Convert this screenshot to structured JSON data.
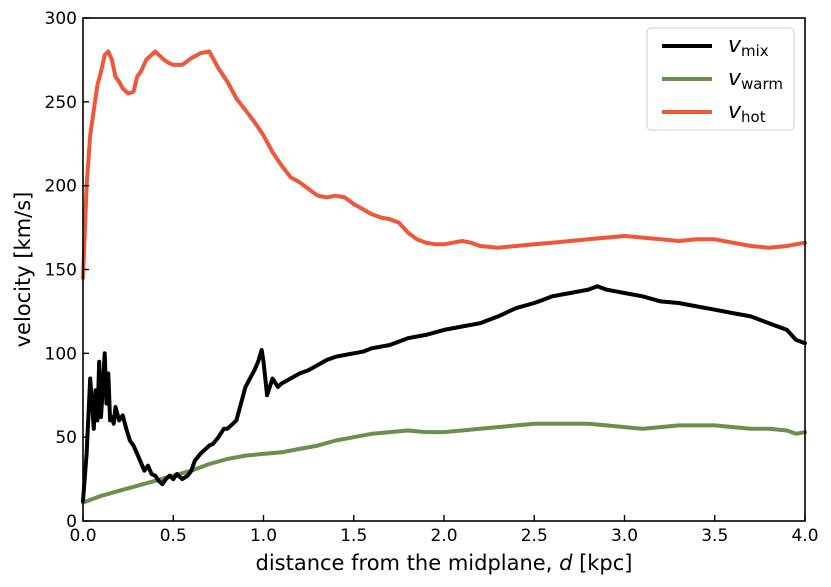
{
  "chart_data": {
    "type": "line",
    "xlabel_prefix": "distance from the midplane, ",
    "xlabel_var": "d",
    "xlabel_suffix": " [kpc]",
    "ylabel": "velocity [km/s]",
    "xlim": [
      0.0,
      4.0
    ],
    "ylim": [
      0,
      300
    ],
    "xticks": [
      "0.0",
      "0.5",
      "1.0",
      "1.5",
      "2.0",
      "2.5",
      "3.0",
      "3.5",
      "4.0"
    ],
    "yticks": [
      "0",
      "50",
      "100",
      "150",
      "200",
      "250",
      "300"
    ],
    "grid": false,
    "legend_position": "top-right",
    "series": [
      {
        "name": "v_mix",
        "legend_symbol": "v",
        "legend_subscript": "mix",
        "color": "#000000",
        "x": [
          0.0,
          0.02,
          0.04,
          0.06,
          0.07,
          0.08,
          0.09,
          0.1,
          0.11,
          0.12,
          0.13,
          0.14,
          0.15,
          0.16,
          0.17,
          0.18,
          0.2,
          0.22,
          0.24,
          0.26,
          0.28,
          0.3,
          0.32,
          0.34,
          0.36,
          0.38,
          0.4,
          0.42,
          0.44,
          0.46,
          0.48,
          0.5,
          0.52,
          0.55,
          0.58,
          0.6,
          0.62,
          0.65,
          0.68,
          0.7,
          0.72,
          0.75,
          0.78,
          0.8,
          0.85,
          0.9,
          0.95,
          0.97,
          0.99,
          1.0,
          1.02,
          1.05,
          1.08,
          1.1,
          1.15,
          1.2,
          1.25,
          1.3,
          1.35,
          1.4,
          1.45,
          1.5,
          1.55,
          1.6,
          1.7,
          1.8,
          1.9,
          2.0,
          2.1,
          2.2,
          2.3,
          2.4,
          2.5,
          2.55,
          2.6,
          2.65,
          2.7,
          2.75,
          2.8,
          2.85,
          2.9,
          2.95,
          3.0,
          3.1,
          3.2,
          3.3,
          3.4,
          3.5,
          3.6,
          3.7,
          3.8,
          3.9,
          3.95,
          4.0
        ],
        "y": [
          12,
          40,
          85,
          55,
          78,
          60,
          95,
          62,
          80,
          100,
          70,
          88,
          60,
          62,
          58,
          68,
          60,
          63,
          55,
          48,
          45,
          40,
          35,
          30,
          33,
          28,
          27,
          24,
          22,
          25,
          27,
          25,
          28,
          25,
          27,
          30,
          36,
          40,
          43,
          45,
          46,
          50,
          55,
          55,
          60,
          80,
          90,
          95,
          102,
          95,
          75,
          85,
          80,
          82,
          85,
          88,
          90,
          93,
          96,
          98,
          99,
          100,
          101,
          103,
          105,
          109,
          111,
          114,
          116,
          118,
          122,
          127,
          130,
          132,
          134,
          135,
          136,
          137,
          138,
          140,
          138,
          137,
          136,
          134,
          131,
          130,
          128,
          126,
          124,
          122,
          118,
          114,
          108,
          106
        ]
      },
      {
        "name": "v_warm",
        "legend_symbol": "v",
        "legend_subscript": "warm",
        "color": "#6a8f4e",
        "x": [
          0.0,
          0.1,
          0.2,
          0.3,
          0.4,
          0.5,
          0.6,
          0.7,
          0.8,
          0.9,
          1.0,
          1.1,
          1.2,
          1.3,
          1.4,
          1.5,
          1.6,
          1.7,
          1.8,
          1.9,
          2.0,
          2.1,
          2.2,
          2.3,
          2.4,
          2.5,
          2.6,
          2.7,
          2.8,
          2.9,
          3.0,
          3.1,
          3.2,
          3.3,
          3.4,
          3.5,
          3.6,
          3.7,
          3.8,
          3.9,
          3.95,
          4.0
        ],
        "y": [
          11,
          15,
          18,
          21,
          24,
          27,
          30,
          34,
          37,
          39,
          40,
          41,
          43,
          45,
          48,
          50,
          52,
          53,
          54,
          53,
          53,
          54,
          55,
          56,
          57,
          58,
          58,
          58,
          58,
          57,
          56,
          55,
          56,
          57,
          57,
          57,
          56,
          55,
          55,
          54,
          52,
          53
        ]
      },
      {
        "name": "v_hot",
        "legend_symbol": "v",
        "legend_subscript": "hot",
        "color": "#f0563a",
        "x": [
          0.0,
          0.02,
          0.04,
          0.06,
          0.08,
          0.1,
          0.12,
          0.14,
          0.16,
          0.18,
          0.2,
          0.22,
          0.25,
          0.28,
          0.3,
          0.32,
          0.35,
          0.38,
          0.4,
          0.42,
          0.45,
          0.48,
          0.5,
          0.55,
          0.6,
          0.65,
          0.7,
          0.75,
          0.8,
          0.85,
          0.9,
          0.95,
          1.0,
          1.05,
          1.1,
          1.15,
          1.2,
          1.25,
          1.3,
          1.35,
          1.4,
          1.45,
          1.5,
          1.55,
          1.6,
          1.65,
          1.7,
          1.75,
          1.8,
          1.85,
          1.9,
          1.95,
          2.0,
          2.05,
          2.1,
          2.15,
          2.2,
          2.3,
          2.4,
          2.5,
          2.6,
          2.7,
          2.8,
          2.9,
          3.0,
          3.1,
          3.2,
          3.3,
          3.4,
          3.5,
          3.6,
          3.7,
          3.8,
          3.9,
          4.0
        ],
        "y": [
          145,
          200,
          230,
          245,
          260,
          268,
          278,
          280,
          275,
          265,
          262,
          258,
          255,
          256,
          265,
          268,
          275,
          278,
          280,
          278,
          275,
          273,
          272,
          272,
          276,
          279,
          280,
          270,
          262,
          252,
          245,
          238,
          230,
          220,
          212,
          205,
          202,
          198,
          194,
          193,
          194,
          193,
          189,
          186,
          183,
          181,
          180,
          178,
          172,
          168,
          166,
          165,
          165,
          166,
          167,
          166,
          164,
          163,
          164,
          165,
          166,
          167,
          168,
          169,
          170,
          169,
          168,
          167,
          168,
          168,
          166,
          164,
          163,
          164,
          166
        ]
      }
    ]
  }
}
